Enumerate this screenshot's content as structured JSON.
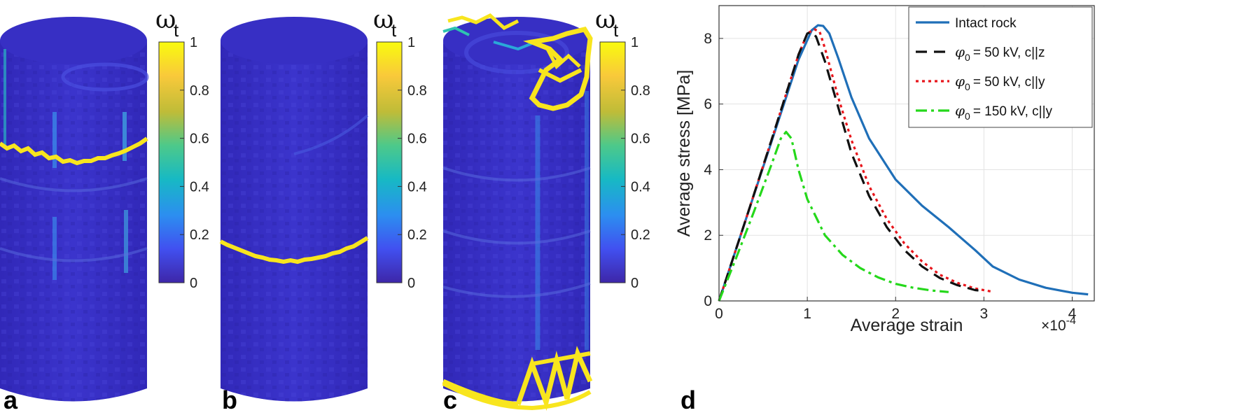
{
  "panels": [
    {
      "letter": "a",
      "colorbar": {
        "label": "ω",
        "subscript": "t",
        "ticks": [
          "0",
          "0.2",
          "0.4",
          "0.6",
          "0.8",
          "1"
        ]
      }
    },
    {
      "letter": "b",
      "colorbar": {
        "label": "ω",
        "subscript": "t",
        "ticks": [
          "0",
          "0.2",
          "0.4",
          "0.6",
          "0.8",
          "1"
        ]
      }
    },
    {
      "letter": "c",
      "colorbar": {
        "label": "ω",
        "subscript": "t",
        "ticks": [
          "0",
          "0.2",
          "0.4",
          "0.6",
          "0.8",
          "1"
        ]
      }
    },
    {
      "letter": "d"
    }
  ],
  "colors": {
    "cylinder_base": "#3a32c8",
    "damage_high": "#f8e51e",
    "colormap": [
      "#3e26a8",
      "#4150f0",
      "#2c8ef0",
      "#17b9c4",
      "#4dc98a",
      "#bfbc38",
      "#f9c93a",
      "#f9fb0e"
    ]
  },
  "chart_data": {
    "type": "line",
    "xlabel": "Average strain",
    "ylabel": "Average stress [MPa]",
    "x_exponent_label": "×10",
    "x_exponent_power": "-4",
    "xlim": [
      0,
      4.25
    ],
    "ylim": [
      0,
      9
    ],
    "xticks": [
      0,
      1,
      2,
      3,
      4
    ],
    "yticks": [
      0,
      2,
      4,
      6,
      8
    ],
    "grid": true,
    "legend_position": "top-right",
    "series": [
      {
        "name": "Intact rock",
        "color": "#1f6fb8",
        "dash": "",
        "x": [
          0,
          0.3,
          0.6,
          0.9,
          1.05,
          1.12,
          1.18,
          1.25,
          1.35,
          1.5,
          1.7,
          2.0,
          2.3,
          2.6,
          2.75,
          2.9,
          3.1,
          3.4,
          3.7,
          4.0,
          4.18
        ],
        "y": [
          0,
          2.45,
          4.9,
          7.35,
          8.25,
          8.4,
          8.38,
          8.15,
          7.4,
          6.2,
          4.95,
          3.7,
          2.9,
          2.25,
          1.9,
          1.55,
          1.05,
          0.65,
          0.4,
          0.25,
          0.2
        ]
      },
      {
        "name": "= 50 kV, c||z",
        "color": "#111111",
        "dash": "16,10",
        "x": [
          0,
          0.3,
          0.6,
          0.9,
          1.0,
          1.05,
          1.1,
          1.2,
          1.35,
          1.5,
          1.7,
          1.9,
          2.1,
          2.3,
          2.5,
          2.7,
          2.9,
          3.0
        ],
        "y": [
          0,
          2.45,
          4.95,
          7.5,
          8.15,
          8.2,
          8.05,
          7.3,
          5.9,
          4.5,
          3.2,
          2.25,
          1.55,
          1.05,
          0.7,
          0.48,
          0.33,
          0.3
        ]
      },
      {
        "name": "= 50 kV, c||y",
        "color": "#e8151b",
        "dash": "4,5",
        "x": [
          0,
          0.3,
          0.6,
          0.9,
          1.0,
          1.08,
          1.14,
          1.2,
          1.35,
          1.5,
          1.7,
          1.9,
          2.1,
          2.3,
          2.5,
          2.7,
          2.9,
          3.1
        ],
        "y": [
          0,
          2.45,
          4.95,
          7.5,
          8.15,
          8.28,
          8.2,
          7.7,
          6.2,
          4.9,
          3.5,
          2.5,
          1.75,
          1.2,
          0.8,
          0.55,
          0.38,
          0.28
        ]
      },
      {
        "name": "= 150 kV, c||y",
        "color": "#25d81b",
        "dash": "16,6,4,6",
        "x": [
          0,
          0.2,
          0.4,
          0.6,
          0.7,
          0.76,
          0.82,
          0.9,
          1.0,
          1.2,
          1.4,
          1.6,
          1.8,
          2.0,
          2.2,
          2.4,
          2.6
        ],
        "y": [
          0,
          1.35,
          2.75,
          4.2,
          4.95,
          5.15,
          4.95,
          4.0,
          3.1,
          2.0,
          1.4,
          1.0,
          0.72,
          0.52,
          0.4,
          0.32,
          0.27
        ]
      }
    ],
    "legend_symbol": "φ",
    "legend_symbol_sub": "0"
  }
}
